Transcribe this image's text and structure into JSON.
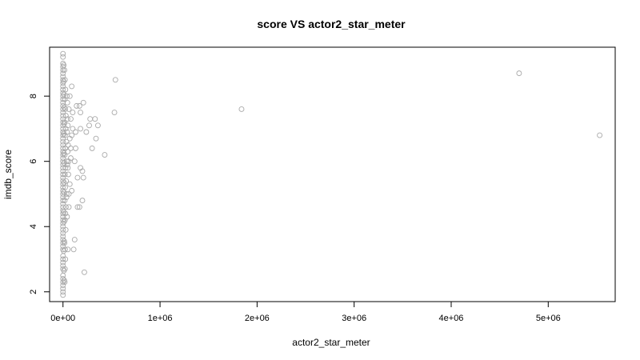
{
  "chart_data": {
    "type": "scatter",
    "title": "score VS actor2_star_meter",
    "xlabel": "actor2_star_meter",
    "ylabel": "imdb_score",
    "xlim": [
      -138000,
      5690000
    ],
    "ylim": [
      1.7,
      9.5
    ],
    "xticks": [
      0,
      1000000,
      2000000,
      3000000,
      4000000,
      5000000
    ],
    "xtick_labels": [
      "0e+00",
      "1e+06",
      "2e+06",
      "3e+06",
      "4e+06",
      "5e+06"
    ],
    "yticks": [
      2,
      4,
      6,
      8
    ],
    "ytick_labels": [
      "2",
      "4",
      "6",
      "8"
    ],
    "marker": "open-circle",
    "point_color": "#a9a9a9",
    "grid": false,
    "legend": "none",
    "points": [
      [
        1840000,
        7.6
      ],
      [
        4700000,
        8.7
      ],
      [
        5530000,
        6.8
      ],
      [
        540000,
        8.5
      ],
      [
        530000,
        7.5
      ],
      [
        430000,
        6.2
      ],
      [
        220000,
        2.6
      ],
      [
        120000,
        3.6
      ],
      [
        110000,
        3.3
      ],
      [
        200000,
        4.8
      ],
      [
        170000,
        4.6
      ],
      [
        150000,
        4.6
      ],
      [
        210000,
        5.5
      ],
      [
        150000,
        5.5
      ],
      [
        200000,
        5.7
      ],
      [
        180000,
        5.8
      ],
      [
        120000,
        6.0
      ],
      [
        300000,
        6.4
      ],
      [
        130000,
        6.4
      ],
      [
        340000,
        6.7
      ],
      [
        240000,
        6.9
      ],
      [
        130000,
        6.9
      ],
      [
        180000,
        7.0
      ],
      [
        360000,
        7.1
      ],
      [
        270000,
        7.1
      ],
      [
        330000,
        7.3
      ],
      [
        280000,
        7.3
      ],
      [
        180000,
        7.5
      ],
      [
        140000,
        7.7
      ],
      [
        170000,
        7.7
      ],
      [
        210000,
        7.8
      ],
      [
        100000,
        7.0
      ],
      [
        90000,
        6.8
      ],
      [
        80000,
        7.3
      ],
      [
        70000,
        8.0
      ],
      [
        80000,
        6.4
      ],
      [
        60000,
        5.0
      ],
      [
        90000,
        5.1
      ],
      [
        70000,
        5.3
      ],
      [
        60000,
        4.6
      ],
      [
        50000,
        3.3
      ],
      [
        80000,
        6.1
      ],
      [
        60000,
        7.6
      ],
      [
        90000,
        8.3
      ],
      [
        50000,
        5.8
      ],
      [
        70000,
        6.7
      ],
      [
        100000,
        7.5
      ],
      [
        0,
        9.3
      ],
      [
        0,
        9.2
      ],
      [
        0,
        9.0
      ],
      [
        0,
        8.9
      ],
      [
        0,
        8.8
      ],
      [
        0,
        8.7
      ],
      [
        0,
        8.6
      ],
      [
        0,
        8.5
      ],
      [
        0,
        8.4
      ],
      [
        0,
        8.3
      ],
      [
        0,
        8.2
      ],
      [
        0,
        8.1
      ],
      [
        0,
        8.0
      ],
      [
        0,
        7.9
      ],
      [
        0,
        7.8
      ],
      [
        0,
        7.7
      ],
      [
        0,
        7.6
      ],
      [
        0,
        7.5
      ],
      [
        0,
        7.4
      ],
      [
        0,
        7.3
      ],
      [
        0,
        7.2
      ],
      [
        0,
        7.1
      ],
      [
        0,
        7.0
      ],
      [
        0,
        6.9
      ],
      [
        0,
        6.8
      ],
      [
        0,
        6.7
      ],
      [
        0,
        6.6
      ],
      [
        0,
        6.5
      ],
      [
        0,
        6.4
      ],
      [
        0,
        6.3
      ],
      [
        0,
        6.2
      ],
      [
        0,
        6.1
      ],
      [
        0,
        6.0
      ],
      [
        0,
        5.9
      ],
      [
        0,
        5.8
      ],
      [
        0,
        5.7
      ],
      [
        0,
        5.6
      ],
      [
        0,
        5.5
      ],
      [
        0,
        5.4
      ],
      [
        0,
        5.3
      ],
      [
        0,
        5.2
      ],
      [
        0,
        5.1
      ],
      [
        0,
        5.0
      ],
      [
        0,
        4.9
      ],
      [
        0,
        4.8
      ],
      [
        0,
        4.7
      ],
      [
        0,
        4.6
      ],
      [
        0,
        4.5
      ],
      [
        0,
        4.4
      ],
      [
        0,
        4.3
      ],
      [
        0,
        4.2
      ],
      [
        0,
        4.1
      ],
      [
        0,
        4.0
      ],
      [
        0,
        3.9
      ],
      [
        0,
        3.8
      ],
      [
        0,
        3.7
      ],
      [
        0,
        3.6
      ],
      [
        0,
        3.5
      ],
      [
        0,
        3.4
      ],
      [
        0,
        3.3
      ],
      [
        0,
        3.1
      ],
      [
        0,
        3.0
      ],
      [
        0,
        2.9
      ],
      [
        0,
        2.8
      ],
      [
        0,
        2.7
      ],
      [
        0,
        2.5
      ],
      [
        0,
        2.4
      ],
      [
        0,
        2.3
      ],
      [
        0,
        2.2
      ],
      [
        0,
        2.1
      ],
      [
        0,
        2.0
      ],
      [
        0,
        1.9
      ],
      [
        15000,
        8.8
      ],
      [
        20000,
        8.5
      ],
      [
        25000,
        8.2
      ],
      [
        18000,
        7.9
      ],
      [
        22000,
        7.6
      ],
      [
        30000,
        7.4
      ],
      [
        16000,
        7.2
      ],
      [
        28000,
        7.0
      ],
      [
        20000,
        6.8
      ],
      [
        35000,
        6.6
      ],
      [
        24000,
        6.4
      ],
      [
        18000,
        6.2
      ],
      [
        40000,
        6.0
      ],
      [
        26000,
        5.8
      ],
      [
        20000,
        5.6
      ],
      [
        32000,
        5.4
      ],
      [
        22000,
        5.2
      ],
      [
        38000,
        5.0
      ],
      [
        18000,
        4.8
      ],
      [
        30000,
        4.6
      ],
      [
        25000,
        4.4
      ],
      [
        20000,
        4.2
      ],
      [
        28000,
        3.9
      ],
      [
        16000,
        3.5
      ],
      [
        22000,
        3.3
      ],
      [
        20000,
        2.7
      ],
      [
        18000,
        2.3
      ],
      [
        24000,
        3.0
      ],
      [
        45000,
        7.8
      ],
      [
        50000,
        7.1
      ],
      [
        42000,
        6.9
      ],
      [
        48000,
        6.3
      ],
      [
        55000,
        5.6
      ],
      [
        44000,
        5.9
      ],
      [
        52000,
        6.5
      ],
      [
        46000,
        7.3
      ],
      [
        40000,
        8.0
      ],
      [
        58000,
        6.0
      ],
      [
        36000,
        4.9
      ],
      [
        42000,
        4.3
      ],
      [
        8000,
        8.95
      ],
      [
        10000,
        8.05
      ],
      [
        12000,
        7.15
      ],
      [
        9000,
        6.25
      ],
      [
        11000,
        5.35
      ],
      [
        7000,
        4.45
      ],
      [
        13000,
        3.55
      ],
      [
        10000,
        2.65
      ],
      [
        6000,
        8.45
      ],
      [
        14000,
        7.65
      ],
      [
        8000,
        6.85
      ],
      [
        12000,
        5.95
      ],
      [
        9000,
        5.05
      ],
      [
        11000,
        4.15
      ],
      [
        7000,
        3.25
      ],
      [
        13000,
        2.35
      ]
    ]
  }
}
